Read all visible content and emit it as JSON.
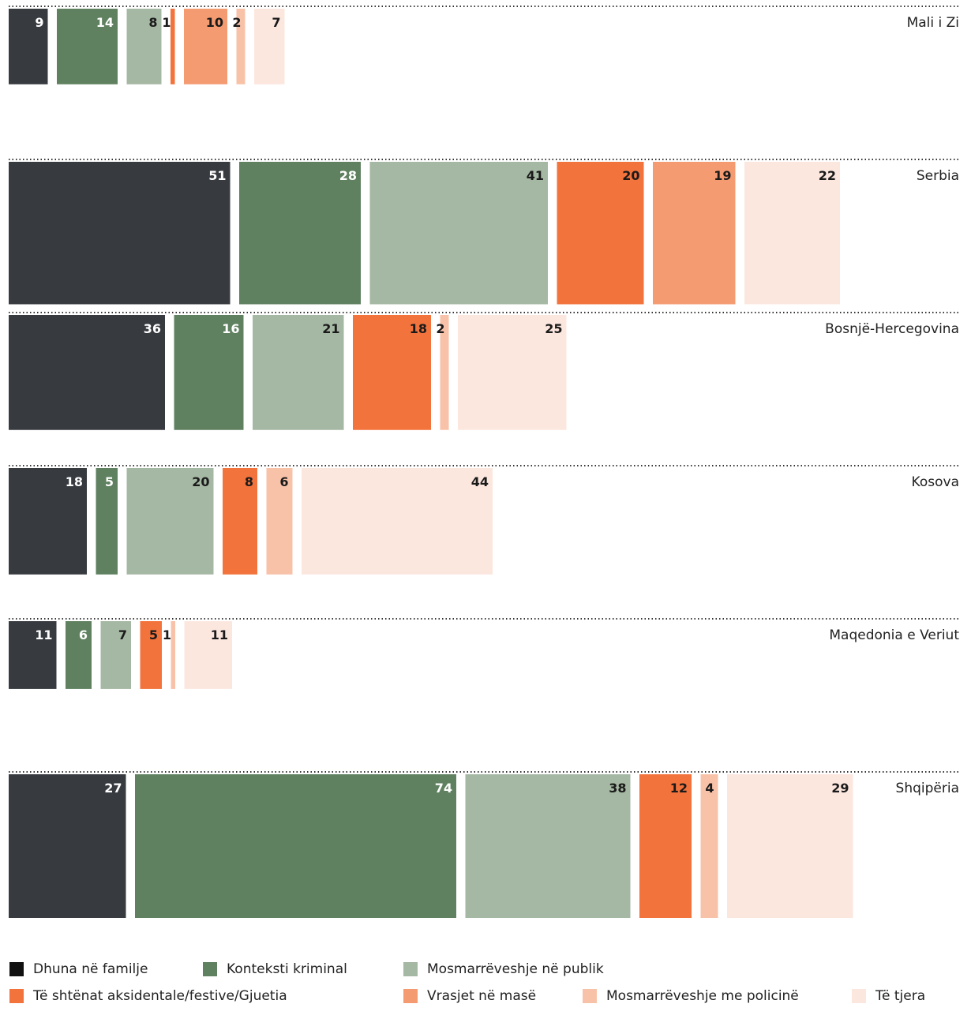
{
  "chart_data": {
    "type": "bar",
    "subtype": "horizontal-grouped (mosaic rows)",
    "categories": [
      "Mali i Zi",
      "Serbia",
      "Bosnjë-Hercegovina",
      "Kosova",
      "Maqedonia e Veriut",
      "Shqipëria"
    ],
    "series": [
      {
        "name": "Dhuna në familje",
        "color": "#373b40",
        "label_color": "#ffffff",
        "values": [
          9,
          51,
          36,
          18,
          11,
          27
        ]
      },
      {
        "name": "Konteksti kriminal",
        "color": "#5f8160",
        "label_color": "#ffffff",
        "values": [
          14,
          28,
          16,
          5,
          6,
          74
        ]
      },
      {
        "name": "Mosmarrëveshje në publik",
        "color": "#a5b8a3",
        "label_color": "#1a1a1a",
        "values": [
          8,
          41,
          21,
          20,
          7,
          38
        ]
      },
      {
        "name": "Të shtënat aksidentale/festive/Gjuetia",
        "color": "#f2733c",
        "label_color": "#1a1a1a",
        "values": [
          1,
          20,
          18,
          8,
          5,
          12
        ]
      },
      {
        "name": "Vrasjet në masë",
        "color": "#f59b72",
        "label_color": "#1a1a1a",
        "values": [
          10,
          19,
          0,
          0,
          0,
          0
        ]
      },
      {
        "name": "Mosmarrëveshje me policinë",
        "color": "#f8c2a9",
        "label_color": "#1a1a1a",
        "values": [
          2,
          0,
          2,
          6,
          1,
          4
        ]
      },
      {
        "name": "Të tjera",
        "color": "#fce7df",
        "label_color": "#1a1a1a",
        "values": [
          7,
          22,
          25,
          44,
          11,
          29
        ]
      }
    ],
    "legend_placement": "bottom",
    "grid": "dotted separator lines between rows"
  }
}
